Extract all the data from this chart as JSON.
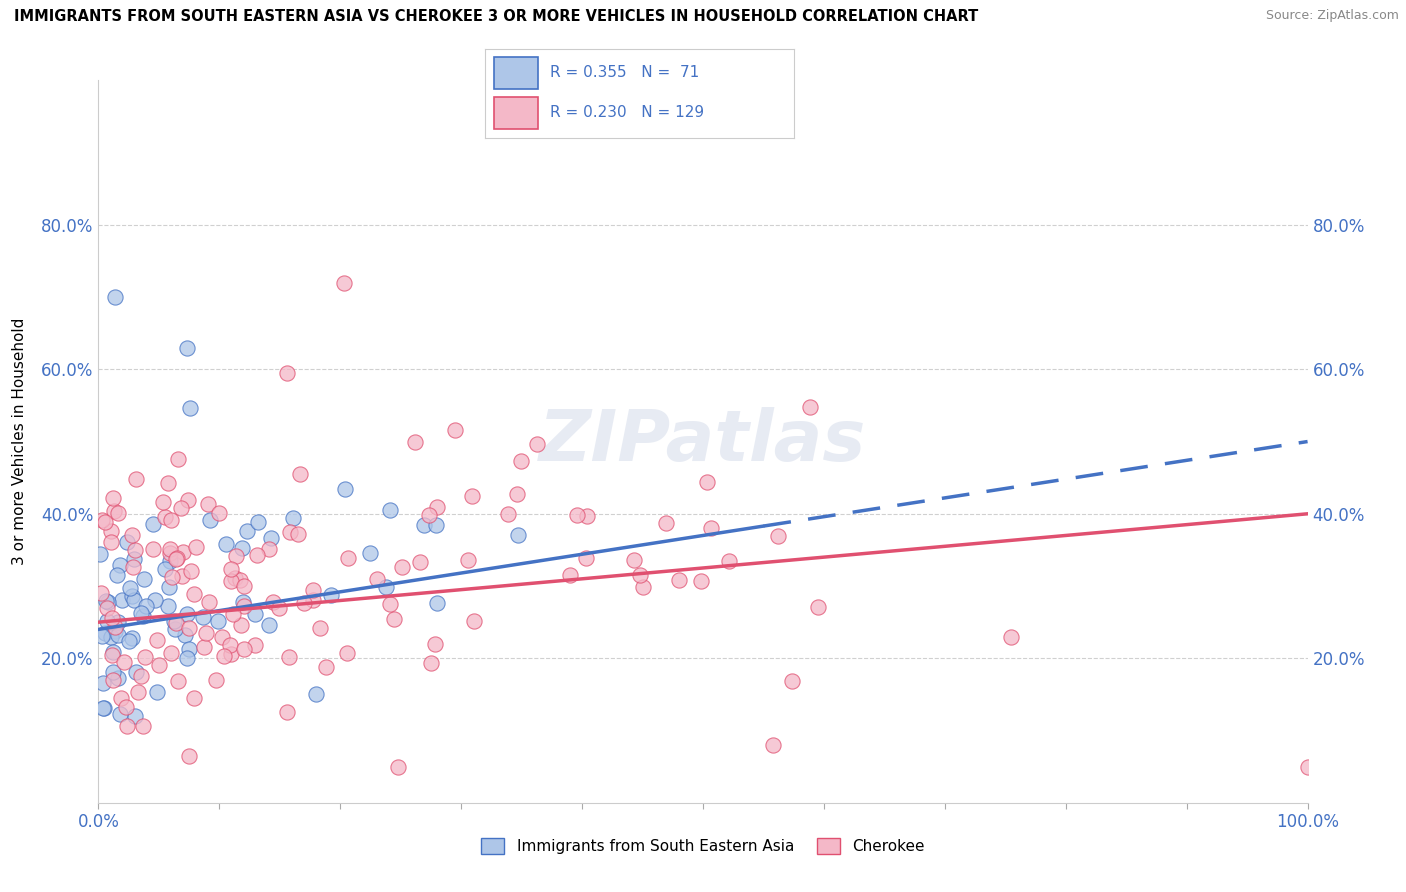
{
  "title": "IMMIGRANTS FROM SOUTH EASTERN ASIA VS CHEROKEE 3 OR MORE VEHICLES IN HOUSEHOLD CORRELATION CHART",
  "source": "Source: ZipAtlas.com",
  "ylabel": "3 or more Vehicles in Household",
  "legend_label1": "Immigrants from South Eastern Asia",
  "legend_label2": "Cherokee",
  "R1": 0.355,
  "N1": 71,
  "R2": 0.23,
  "N2": 129,
  "color_blue": "#aec6e8",
  "color_pink": "#f4b8c8",
  "line_color_blue": "#4472c4",
  "line_color_pink": "#e05070",
  "xlim": [
    0,
    100
  ],
  "ylim": [
    0,
    100
  ],
  "ytick_vals": [
    20,
    40,
    60,
    80
  ],
  "ytick_labels": [
    "20.0%",
    "40.0%",
    "60.0%",
    "80.0%"
  ],
  "figsize": [
    14.06,
    8.92
  ],
  "dpi": 100,
  "watermark": "ZIPatlas",
  "bg_color": "#ffffff",
  "grid_color": "#d0d0d0"
}
